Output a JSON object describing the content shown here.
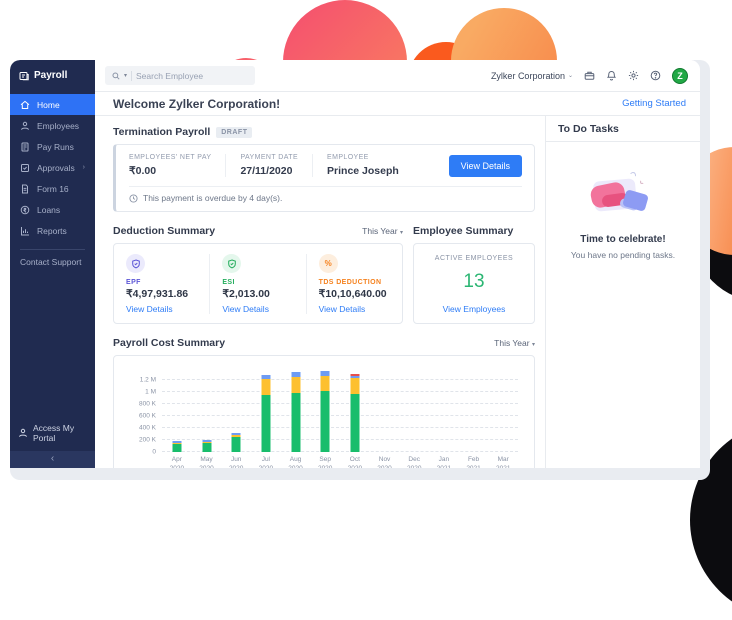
{
  "sidebar": {
    "logo_label": "Payroll",
    "items": [
      {
        "label": "Home",
        "icon": "home",
        "active": true
      },
      {
        "label": "Employees",
        "icon": "employees"
      },
      {
        "label": "Pay Runs",
        "icon": "pay-runs"
      },
      {
        "label": "Approvals",
        "icon": "approvals",
        "has_submenu": true
      },
      {
        "label": "Form 16",
        "icon": "form16"
      },
      {
        "label": "Loans",
        "icon": "loans"
      },
      {
        "label": "Reports",
        "icon": "reports"
      }
    ],
    "support_label": "Contact Support",
    "portal_label": "Access My Portal",
    "collapse_glyph": "‹"
  },
  "topbar": {
    "search_placeholder": "Search Employee",
    "org_name": "Zylker Corporation",
    "icons": [
      "briefcase-icon",
      "bell-icon",
      "gear-icon",
      "help-icon"
    ],
    "avatar_letter": "Z"
  },
  "header": {
    "welcome": "Welcome Zylker Corporation!",
    "getting_started": "Getting Started"
  },
  "termination": {
    "title": "Termination Payroll",
    "badge": "DRAFT",
    "fields": [
      {
        "label": "EMPLOYEES' NET PAY",
        "value": "₹0.00"
      },
      {
        "label": "PAYMENT DATE",
        "value": "27/11/2020"
      },
      {
        "label": "EMPLOYEE",
        "value": "Prince Joseph"
      }
    ],
    "button_label": "View Details",
    "overdue_note": "This payment is overdue by 4 day(s)."
  },
  "deduction_summary": {
    "title": "Deduction Summary",
    "filter_label": "This Year",
    "items": [
      {
        "label": "EPF",
        "value": "₹4,97,931.86",
        "link": "View Details",
        "color": "#5b55d6",
        "bg": "#ebeafc",
        "icon": "shield"
      },
      {
        "label": "ESI",
        "value": "₹2,013.00",
        "link": "View Details",
        "color": "#23ad5c",
        "bg": "#e4f7ec",
        "icon": "shield"
      },
      {
        "label": "TDS DEDUCTION",
        "value": "₹10,10,640.00",
        "link": "View Details",
        "color": "#f5821f",
        "bg": "#fdeede",
        "icon": "percent"
      }
    ]
  },
  "employee_summary": {
    "title": "Employee Summary",
    "label": "ACTIVE EMPLOYEES",
    "count": "13",
    "link": "View Employees"
  },
  "payroll_cost": {
    "title": "Payroll Cost Summary",
    "filter_label": "This Year"
  },
  "chart_data": {
    "type": "bar",
    "stacked": true,
    "title": "Payroll Cost Summary",
    "categories": [
      "Apr 2020",
      "May 2020",
      "Jun 2020",
      "Jul 2020",
      "Aug 2020",
      "Sep 2020",
      "Oct 2020",
      "Nov 2020",
      "Dec 2020",
      "Jan 2021",
      "Feb 2021",
      "Mar 2021"
    ],
    "series": [
      {
        "name": "green",
        "color": "#19bd6c",
        "values": [
          130000,
          145000,
          250000,
          950000,
          990000,
          1010000,
          960000,
          0,
          0,
          0,
          0,
          0
        ]
      },
      {
        "name": "yellow",
        "color": "#fdc02f",
        "values": [
          25000,
          15000,
          35000,
          270000,
          265000,
          255000,
          280000,
          0,
          0,
          0,
          0,
          0
        ]
      },
      {
        "name": "blue",
        "color": "#6f9cf3",
        "values": [
          35000,
          40000,
          35000,
          70000,
          80000,
          80000,
          35000,
          0,
          0,
          0,
          0,
          0
        ]
      },
      {
        "name": "red",
        "color": "#e7504c",
        "values": [
          0,
          0,
          0,
          0,
          0,
          0,
          20000,
          0,
          0,
          0,
          0,
          0
        ]
      }
    ],
    "ylim": [
      0,
      1400000
    ],
    "ytick_values": [
      0,
      200000,
      400000,
      600000,
      800000,
      1000000,
      1200000
    ],
    "ytick_labels": [
      "0",
      "200 K",
      "400 K",
      "600 K",
      "800 K",
      "1 M",
      "1.2 M"
    ],
    "grid": "dashed-horizontal",
    "legend": "none"
  },
  "todo": {
    "title": "To Do Tasks",
    "headline": "Time to celebrate!",
    "subtext": "You have no pending tasks."
  },
  "colors": {
    "accent_blue": "#2e7cf6",
    "sidebar_navy": "#202b50",
    "active_green": "#2bb673",
    "epf_purple": "#5b55d6",
    "esi_green": "#23ad5c",
    "tds_orange": "#f5821f"
  }
}
